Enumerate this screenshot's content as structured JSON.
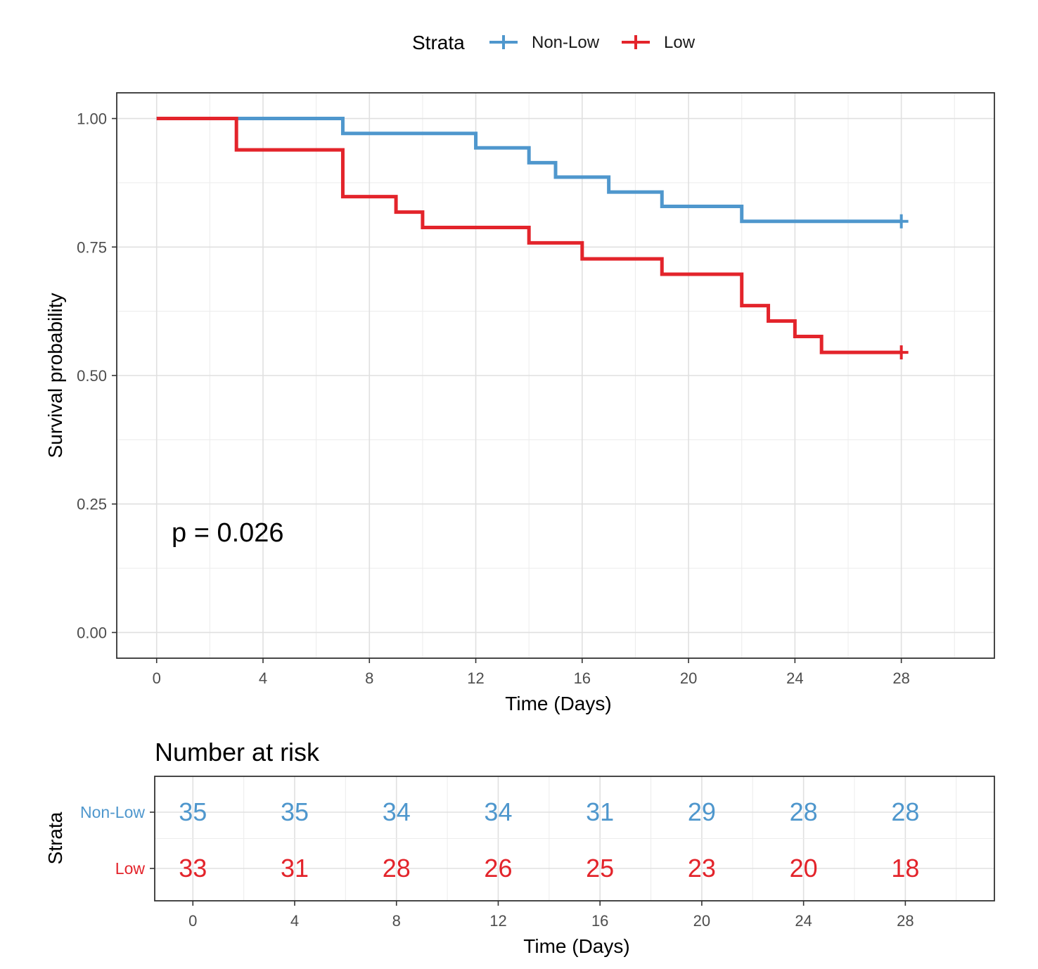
{
  "legend": {
    "title": "Strata",
    "position": "top",
    "entries": [
      "Non-Low",
      "Low"
    ]
  },
  "colors": {
    "Non-Low": "#4f97cd",
    "Low": "#e3242b"
  },
  "annotation": "p = 0.026",
  "chart_data": [
    {
      "type": "line",
      "subtype": "kaplan-meier-step",
      "xlabel": "Time (Days)",
      "ylabel": "Survival probability",
      "xlim": [
        -1.5,
        31.5
      ],
      "ylim": [
        -0.05,
        1.05
      ],
      "xticks": [
        0,
        4,
        8,
        12,
        16,
        20,
        24,
        28
      ],
      "xtick_labels": [
        "0",
        "4",
        "8",
        "12",
        "16",
        "20",
        "24",
        "28"
      ],
      "yticks": [
        0,
        0.25,
        0.5,
        0.75,
        1
      ],
      "ytick_labels": [
        "0.00",
        "0.25",
        "0.50",
        "0.75",
        "1.00"
      ],
      "grid": true,
      "series": [
        {
          "name": "Non-Low",
          "color": "#4f97cd",
          "steps": [
            [
              0,
              1.0
            ],
            [
              7,
              0.971
            ],
            [
              12,
              0.943
            ],
            [
              14,
              0.914
            ],
            [
              15,
              0.886
            ],
            [
              17,
              0.857
            ],
            [
              19,
              0.829
            ],
            [
              22,
              0.8
            ]
          ],
          "end": 28,
          "censor": [
            [
              28,
              0.8
            ]
          ]
        },
        {
          "name": "Low",
          "color": "#e3242b",
          "steps": [
            [
              0,
              1.0
            ],
            [
              3,
              0.939
            ],
            [
              7,
              0.848
            ],
            [
              9,
              0.818
            ],
            [
              10,
              0.788
            ],
            [
              14,
              0.758
            ],
            [
              16,
              0.727
            ],
            [
              19,
              0.697
            ],
            [
              22,
              0.636
            ],
            [
              23,
              0.606
            ],
            [
              24,
              0.576
            ],
            [
              25,
              0.545
            ]
          ],
          "end": 28,
          "censor": [
            [
              28,
              0.545
            ]
          ]
        }
      ]
    },
    {
      "type": "table",
      "title": "Number at risk",
      "ylabel": "Strata",
      "xlabel": "Time (Days)",
      "times": [
        0,
        4,
        8,
        12,
        16,
        20,
        24,
        28
      ],
      "xtick_labels": [
        "0",
        "4",
        "8",
        "12",
        "16",
        "20",
        "24",
        "28"
      ],
      "rows": [
        {
          "name": "Non-Low",
          "color": "#4f97cd",
          "values": [
            35,
            35,
            34,
            34,
            31,
            29,
            28,
            28
          ]
        },
        {
          "name": "Low",
          "color": "#e3242b",
          "values": [
            33,
            31,
            28,
            26,
            25,
            23,
            20,
            18
          ]
        }
      ]
    }
  ]
}
